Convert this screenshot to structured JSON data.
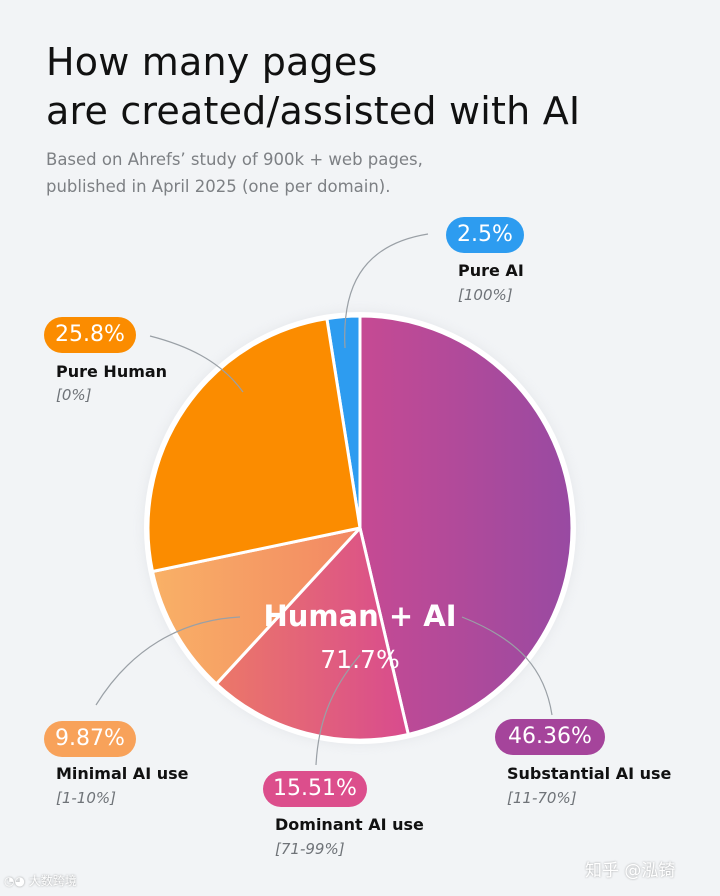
{
  "header": {
    "title_line1": "How many pages",
    "title_line2": "are created/assisted with AI",
    "subtitle_line1": "Based on Ahrefs’ study of 900k + web pages,",
    "subtitle_line2": "published in April 2025 (one per domain)."
  },
  "chart_data": {
    "type": "pie",
    "title": "How many pages are created/assisted with AI",
    "subtitle": "Based on Ahrefs’ study of 900k + web pages, published in April 2025 (one per domain).",
    "slices": [
      {
        "key": "pure_ai",
        "name": "Pure AI",
        "range": "[100%]",
        "value": 2.5,
        "value_label": "2.5%",
        "color": "#2d9cf0"
      },
      {
        "key": "substantial",
        "name": "Substantial AI use",
        "range": "[11-70%]",
        "value": 46.36,
        "value_label": "46.36%",
        "color": "#a5449b"
      },
      {
        "key": "dominant",
        "name": "Dominant AI use",
        "range": "[71-99%]",
        "value": 15.51,
        "value_label": "15.51%",
        "color": "#dc4e8c"
      },
      {
        "key": "minimal",
        "name": "Minimal AI use",
        "range": "[1-10%]",
        "value": 9.87,
        "value_label": "9.87%",
        "color": "#f8a25a"
      },
      {
        "key": "pure_human",
        "name": "Pure Human",
        "range": "[0%]",
        "value": 25.8,
        "value_label": "25.8%",
        "color": "#fb8c00"
      }
    ],
    "center_label": "Human + AI",
    "center_value": "71.7%"
  },
  "watermark": {
    "right": "知乎 @泓锜",
    "left": "大数跨境"
  }
}
